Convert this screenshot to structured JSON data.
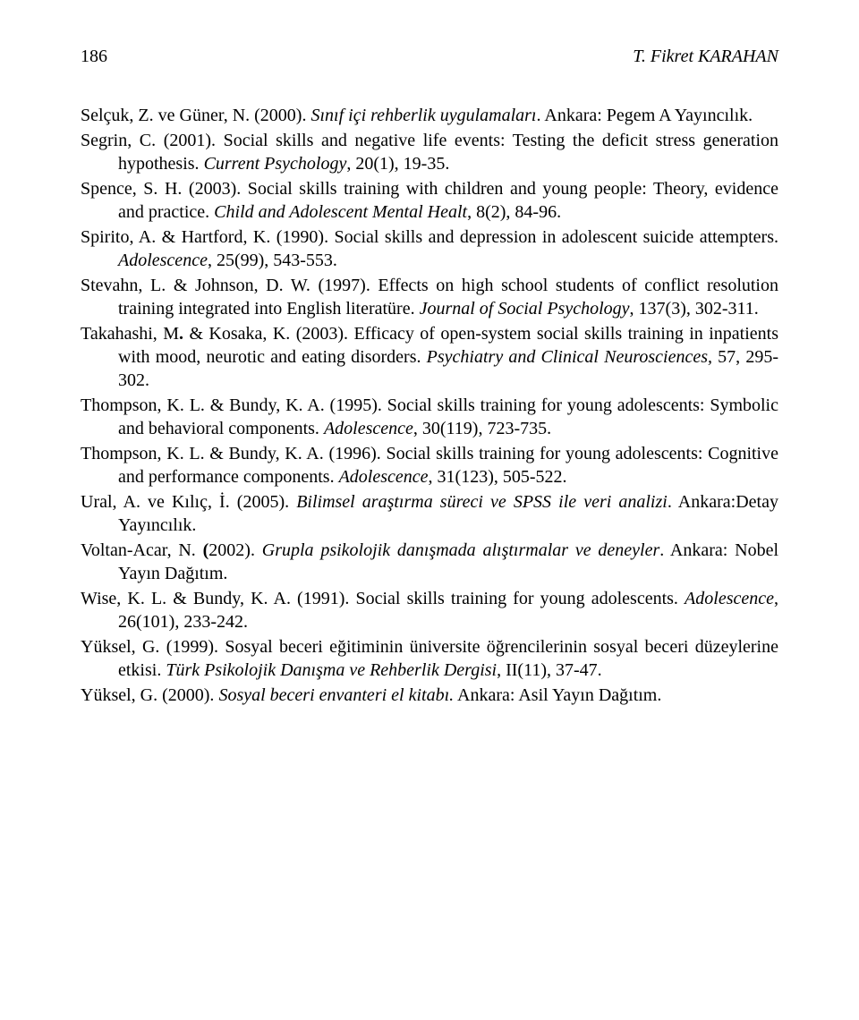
{
  "header": {
    "page_number": "186",
    "author": "T. Fikret KARAHAN"
  },
  "references": [
    {
      "segments": [
        {
          "text": "Selçuk, Z. ve Güner, N. (2000).  ",
          "style": ""
        },
        {
          "text": "Sınıf içi rehberlik uygulamaları",
          "style": "italic"
        },
        {
          "text": ". Ankara: Pegem A Yayıncılık.",
          "style": ""
        }
      ]
    },
    {
      "segments": [
        {
          "text": "Segrin, C. (2001). Social skills and negative life events: Testing the deficit stress generation hypothesis. ",
          "style": ""
        },
        {
          "text": "Current Psychology",
          "style": "italic"
        },
        {
          "text": ", 20(1), 19-35.",
          "style": ""
        }
      ]
    },
    {
      "segments": [
        {
          "text": "Spence, S. H. (2003). Social skills training with children and young people: Theory, evidence and practice. ",
          "style": ""
        },
        {
          "text": "Child and Adolescent Mental Healt",
          "style": "italic"
        },
        {
          "text": ", 8(2), 84-96.",
          "style": ""
        }
      ]
    },
    {
      "segments": [
        {
          "text": "Spirito, A. & Hartford, K. (1990). Social skills and depression in adolescent suicide attempters. ",
          "style": ""
        },
        {
          "text": "Adolescence",
          "style": "italic"
        },
        {
          "text": ", 25(99), 543-553.",
          "style": ""
        }
      ]
    },
    {
      "segments": [
        {
          "text": "Stevahn, L. & Johnson, D. W. (1997). Effects on high school students of conflict resolution training integrated into English literatüre. ",
          "style": ""
        },
        {
          "text": "Journal of Social Psychology",
          "style": "italic"
        },
        {
          "text": ", 137(3), 302-311.",
          "style": ""
        }
      ]
    },
    {
      "segments": [
        {
          "text": "Takahashi, M",
          "style": ""
        },
        {
          "text": ".",
          "style": "bold"
        },
        {
          "text": " & Kosaka, K. (2003). Efficacy of open-system social skills training in inpatients with mood, neurotic and eating disorders. ",
          "style": ""
        },
        {
          "text": "Psychiatry and Clinical Neurosciences,",
          "style": "italic"
        },
        {
          "text": " 57, 295-302.",
          "style": ""
        }
      ]
    },
    {
      "segments": [
        {
          "text": "Thompson, K. L. & Bundy, K. A. (1995). Social skills training for young adolescents: Symbolic and behavioral components. ",
          "style": ""
        },
        {
          "text": "Adolescence",
          "style": "italic"
        },
        {
          "text": ", 30(119), 723-735.",
          "style": ""
        }
      ]
    },
    {
      "segments": [
        {
          "text": "Thompson, K. L. & Bundy, K. A. (1996). Social skills training for young adolescents: Cognitive and performance components. ",
          "style": ""
        },
        {
          "text": "Adolescence",
          "style": "italic"
        },
        {
          "text": ", 31(123), 505-522.",
          "style": ""
        }
      ]
    },
    {
      "segments": [
        {
          "text": "Ural, A. ve Kılıç, İ.  (2005). ",
          "style": ""
        },
        {
          "text": "Bilimsel araştırma süreci ve SPSS ile veri analizi",
          "style": "italic"
        },
        {
          "text": ". Ankara:Detay Yayıncılık.",
          "style": ""
        }
      ]
    },
    {
      "segments": [
        {
          "text": "Voltan-Acar, N. ",
          "style": ""
        },
        {
          "text": "(",
          "style": "bold"
        },
        {
          "text": "2002). ",
          "style": ""
        },
        {
          "text": "Grupla psikolojik danışmada alıştırmalar ve deneyler",
          "style": "italic"
        },
        {
          "text": ". Ankara: Nobel Yayın Dağıtım.",
          "style": ""
        }
      ]
    },
    {
      "segments": [
        {
          "text": "Wise, K. L. & Bundy, K. A. (1991). Social skills training for young adolescents. ",
          "style": ""
        },
        {
          "text": "Adolescence",
          "style": "italic"
        },
        {
          "text": ", 26(101), 233-242.",
          "style": ""
        }
      ]
    },
    {
      "segments": [
        {
          "text": "Yüksel, G. (1999). Sosyal beceri eğitiminin  üniversite öğrencilerinin sosyal beceri düzeylerine etkisi.  ",
          "style": ""
        },
        {
          "text": "Türk Psikolojik Danışma ve Rehberlik Dergisi",
          "style": "italic"
        },
        {
          "text": ", II(11), 37-47.",
          "style": ""
        }
      ]
    },
    {
      "segments": [
        {
          "text": "Yüksel, G. (2000). ",
          "style": ""
        },
        {
          "text": "Sosyal beceri envanteri el kitabı.",
          "style": "italic"
        },
        {
          "text": " Ankara: Asil Yayın Dağıtım.",
          "style": ""
        }
      ]
    }
  ]
}
